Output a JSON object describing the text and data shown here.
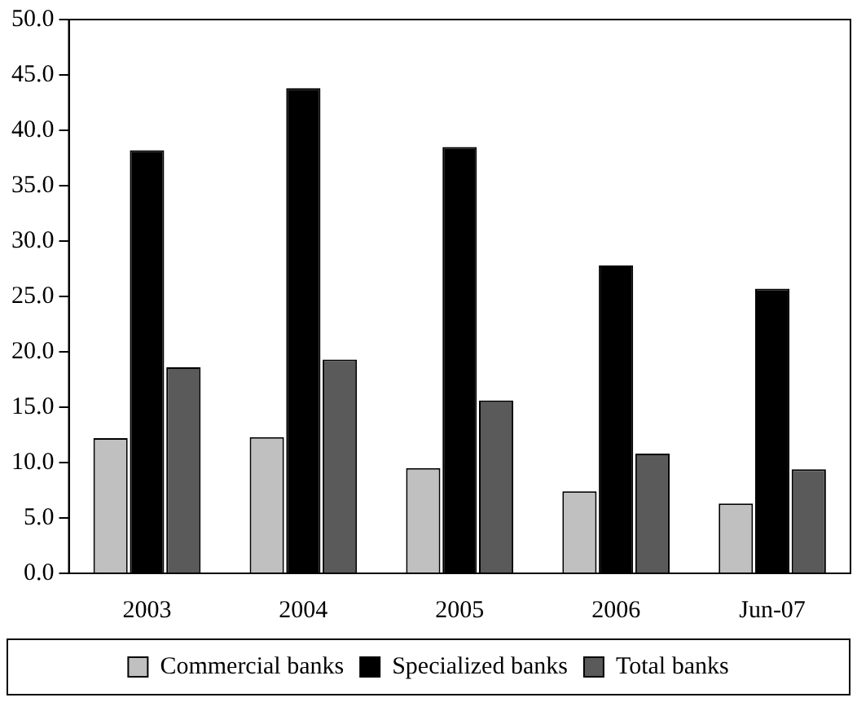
{
  "chart_data": {
    "type": "bar",
    "categories": [
      "2003",
      "2004",
      "2005",
      "2006",
      "Jun-07"
    ],
    "series": [
      {
        "name": "Commercial banks",
        "color": "#c0c0c0",
        "values": [
          12.2,
          12.3,
          9.5,
          7.4,
          6.3
        ]
      },
      {
        "name": "Specialized banks",
        "color": "#000000",
        "values": [
          38.2,
          43.8,
          38.5,
          27.8,
          25.7
        ]
      },
      {
        "name": "Total banks",
        "color": "#5a5a5a",
        "values": [
          18.6,
          19.3,
          15.6,
          10.8,
          9.4
        ]
      }
    ],
    "ylim": [
      0,
      50
    ],
    "yticks": [
      {
        "value": 0,
        "label": "0.0"
      },
      {
        "value": 5,
        "label": "5.0"
      },
      {
        "value": 10,
        "label": "10.0"
      },
      {
        "value": 15,
        "label": "15.0"
      },
      {
        "value": 20,
        "label": "20.0"
      },
      {
        "value": 25,
        "label": "25.0"
      },
      {
        "value": 30,
        "label": "30.0"
      },
      {
        "value": 35,
        "label": "35.0"
      },
      {
        "value": 40,
        "label": "40.0"
      },
      {
        "value": 45,
        "label": "45.0"
      },
      {
        "value": 50,
        "label": "50.0"
      }
    ],
    "grid": false,
    "legend": "bottom"
  }
}
